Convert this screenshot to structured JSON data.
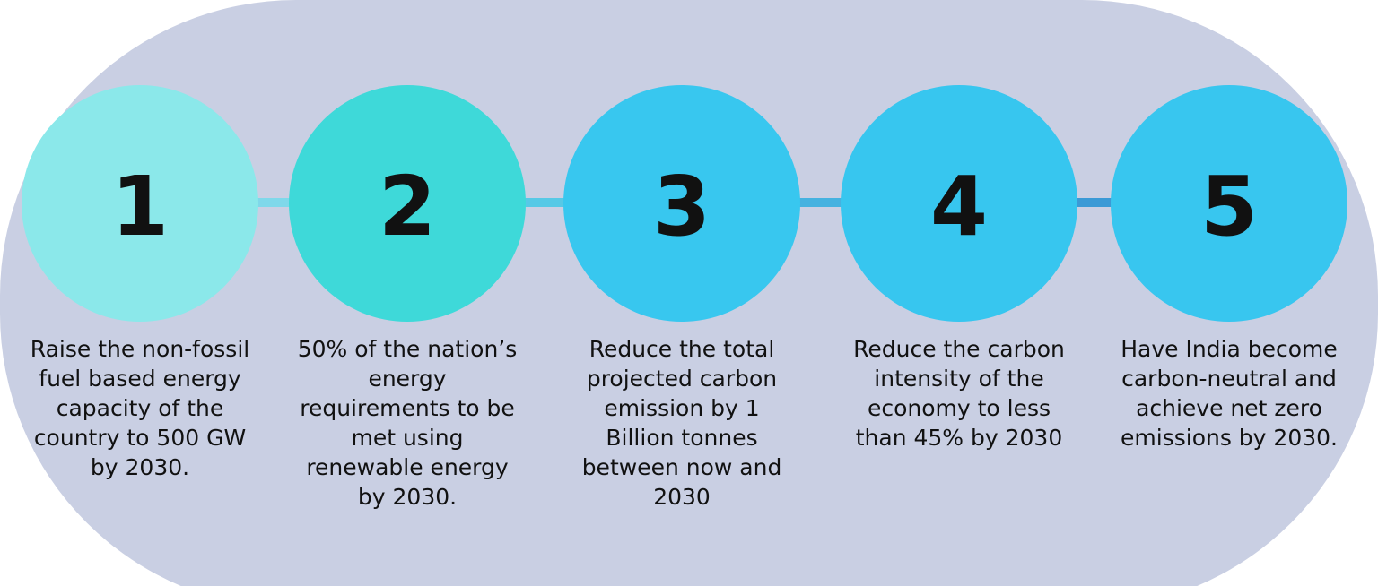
{
  "steps": [
    {
      "number": "1",
      "text": "Raise the non-fossil\nfuel based energy\ncapacity of the\ncountry to 500 GW\nby 2030.",
      "color": "#8be8ea"
    },
    {
      "number": "2",
      "text": "50% of the nation’s\nenergy\nrequirements to be\nmet using\nrenewable energy\nby 2030.",
      "color": "#3ed9d9"
    },
    {
      "number": "3",
      "text": "Reduce the total\nprojected carbon\nemission by 1\nBillion tonnes\nbetween now and\n2030",
      "color": "#38c7ef"
    },
    {
      "number": "4",
      "text": "Reduce the carbon\nintensity of the\neconomy to less\nthan 45% by 2030",
      "color": "#37c6ef"
    },
    {
      "number": "5",
      "text": "Have India become\ncarbon-neutral and\nachieve net zero\nemissions by 2030.",
      "color": "#38c6ef"
    }
  ],
  "colors": {
    "background_pill": "#c9cfe3",
    "connectors": [
      "#7fd8ea",
      "#56c9e6",
      "#45b2e0",
      "#3b9ad6"
    ]
  }
}
